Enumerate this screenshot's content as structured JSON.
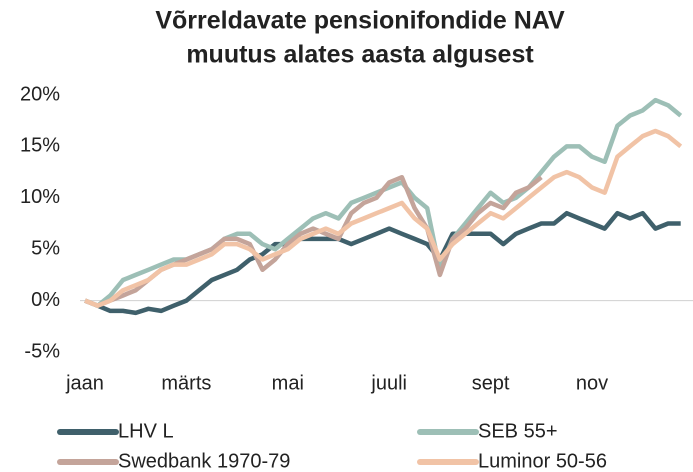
{
  "chart_data": {
    "type": "line",
    "title": [
      "Võrreldavate pensionifondide NAV",
      "muutus alates aasta algusest"
    ],
    "categories": [
      "jaan",
      null,
      null,
      null,
      null,
      null,
      null,
      null,
      "märts",
      null,
      null,
      null,
      null,
      null,
      null,
      null,
      "mai",
      null,
      null,
      null,
      null,
      null,
      null,
      null,
      "juuli",
      null,
      null,
      null,
      null,
      null,
      null,
      null,
      "sept",
      null,
      null,
      null,
      null,
      null,
      null,
      null,
      "nov",
      null,
      null,
      null,
      null,
      null,
      null,
      null
    ],
    "ylim": [
      -5,
      20
    ],
    "yticks": [
      {
        "value": -5,
        "label": "-5%"
      },
      {
        "value": 0,
        "label": "0%"
      },
      {
        "value": 5,
        "label": "5%"
      },
      {
        "value": 10,
        "label": "10%"
      },
      {
        "value": 15,
        "label": "15%"
      },
      {
        "value": 20,
        "label": "20%"
      }
    ],
    "grid": false,
    "legend": "bottom",
    "series": [
      {
        "name": "LHV L",
        "color": "#3f606b",
        "values": [
          0,
          -0.5,
          -1,
          -1,
          -1.2,
          -0.8,
          -1,
          -0.5,
          0,
          1,
          2,
          2.5,
          3,
          4,
          4.5,
          5.5,
          5.5,
          6,
          6,
          6,
          6,
          5.5,
          6,
          6.5,
          7,
          6.5,
          6,
          5.5,
          4,
          6.5,
          6.5,
          6.5,
          6.5,
          5.5,
          6.5,
          7,
          7.5,
          7.5,
          8.5,
          8,
          7.5,
          7,
          8.5,
          8,
          8.5,
          7,
          7.5,
          7.5
        ]
      },
      {
        "name": "SEB 55+",
        "color": "#9dbfb6",
        "values": [
          0,
          -0.5,
          0.5,
          2,
          2.5,
          3,
          3.5,
          4,
          4,
          4.5,
          5,
          6,
          6.5,
          6.5,
          5.5,
          5,
          6,
          7,
          8,
          8.5,
          8,
          9.5,
          10,
          10.5,
          11,
          11.5,
          10,
          9,
          3,
          6,
          7.5,
          9,
          10.5,
          9.5,
          10,
          11,
          12.5,
          14,
          15,
          15,
          14,
          13.5,
          17,
          18,
          18.5,
          19.5,
          19,
          18
        ]
      },
      {
        "name": "Swedbank 1970-79",
        "color": "#c4a49a",
        "values": [
          0,
          -0.5,
          0,
          0.5,
          1,
          2,
          3,
          3.5,
          4,
          4.5,
          5,
          6,
          6,
          5.5,
          3,
          4,
          5.5,
          6.5,
          7,
          6.5,
          6,
          8.5,
          9.5,
          10,
          11.5,
          12,
          9,
          7,
          2.5,
          6,
          7,
          8.5,
          9.5,
          9,
          10.5,
          11,
          12,
          null,
          null,
          null,
          null,
          null,
          null,
          null,
          null,
          null,
          null,
          null
        ]
      },
      {
        "name": "Luminor 50-56",
        "color": "#f1c3a6",
        "values": [
          0,
          -0.5,
          0,
          1,
          1.5,
          2,
          3,
          3.5,
          3.5,
          4,
          4.5,
          5.5,
          5.5,
          5,
          4,
          4.5,
          5,
          6,
          6.5,
          7,
          6.5,
          7.5,
          8,
          8.5,
          9,
          9.5,
          8,
          7,
          4,
          5.5,
          6.5,
          7.5,
          8.5,
          8,
          9,
          10,
          11,
          12,
          12.5,
          12,
          11,
          10.5,
          14,
          15,
          16,
          16.5,
          16,
          15
        ]
      }
    ]
  }
}
